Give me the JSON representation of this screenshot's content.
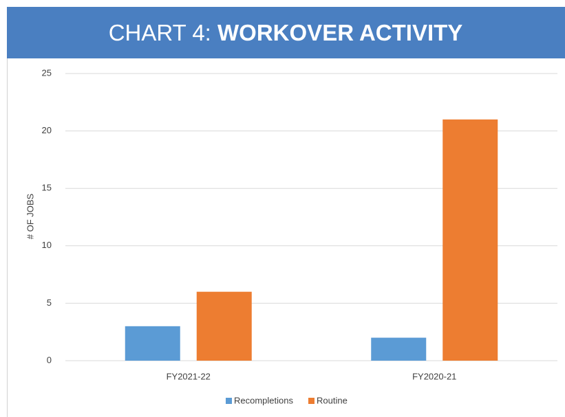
{
  "chart_data": {
    "type": "bar",
    "title_label": "CHART 4:",
    "title": "WORKOVER ACTIVITY",
    "y_label": "# OF JOBS",
    "categories": [
      "FY2021-22",
      "FY2020-21"
    ],
    "series": [
      {
        "name": "Recompletions",
        "color": "#5b9bd5",
        "values": [
          3,
          2
        ]
      },
      {
        "name": "Routine",
        "color": "#ed7d31",
        "values": [
          6,
          21
        ]
      }
    ],
    "ylim": [
      0,
      25
    ],
    "yticks": [
      0,
      5,
      10,
      15,
      20,
      25
    ],
    "grid": true,
    "legend": "bottom"
  }
}
